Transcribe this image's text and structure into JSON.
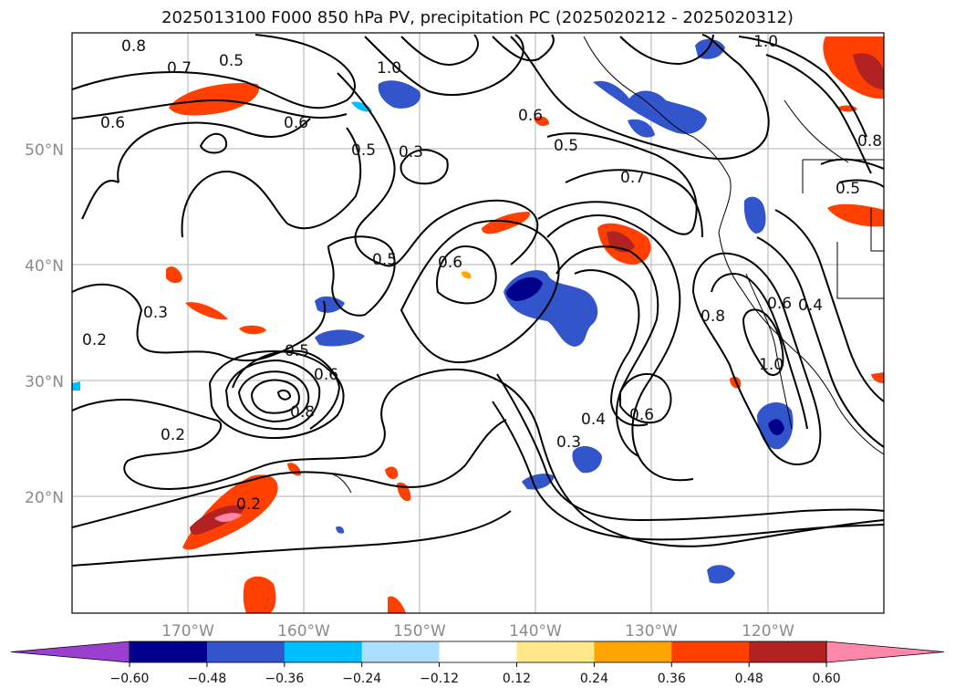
{
  "title": "2025013100 F000 850 hPa PV, precipitation PC (2025020212 - 2025020312)",
  "lat_labels": [
    "50°N",
    "40°N",
    "30°N",
    "20°N"
  ],
  "lon_labels": [
    "170°W",
    "160°W",
    "150°W",
    "140°W",
    "130°W",
    "120°W"
  ],
  "colorbar": {
    "colors": [
      "#9a3fd0",
      "#00008c",
      "#3355cc",
      "#00bfff",
      "#aadfff",
      "#ffffff",
      "#ffe88a",
      "#ffa500",
      "#ff4000",
      "#b22222",
      "#ff88aa"
    ],
    "ticks": [
      "−0.60",
      "−0.48",
      "−0.36",
      "−0.24",
      "−0.12",
      "0.12",
      "0.24",
      "0.36",
      "0.48",
      "0.60"
    ]
  },
  "contour_labels": [
    {
      "text": "0.8"
    },
    {
      "text": "0.7"
    },
    {
      "text": "0.5"
    },
    {
      "text": "0.6"
    },
    {
      "text": "1.0"
    },
    {
      "text": "0.6"
    },
    {
      "text": "0.5"
    },
    {
      "text": "0.3"
    },
    {
      "text": "0.5"
    },
    {
      "text": "0.7"
    },
    {
      "text": "0.6"
    },
    {
      "text": "0.5"
    },
    {
      "text": "0.3"
    },
    {
      "text": "0.2"
    },
    {
      "text": "0.5"
    },
    {
      "text": "0.6"
    },
    {
      "text": "0.8"
    },
    {
      "text": "0.2"
    },
    {
      "text": "0.2"
    },
    {
      "text": "0.3"
    },
    {
      "text": "0.4"
    },
    {
      "text": "0.6"
    },
    {
      "text": "0.8"
    },
    {
      "text": "1.0"
    },
    {
      "text": "0.6"
    },
    {
      "text": "0.4"
    },
    {
      "text": "0.5"
    },
    {
      "text": "0.8"
    },
    {
      "text": "1.0"
    },
    {
      "text": "0.6"
    }
  ]
}
